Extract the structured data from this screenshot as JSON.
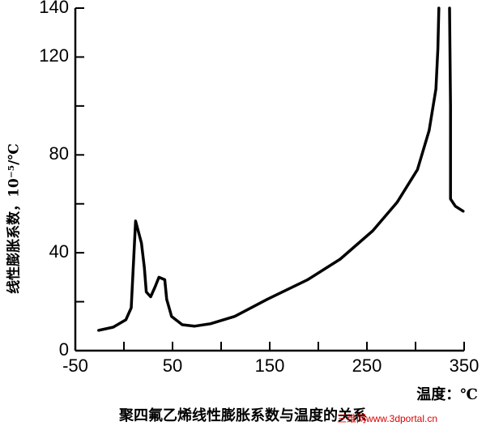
{
  "chart_data": {
    "type": "line",
    "title": "聚四氟乙烯线性膨胀系数与温度的关系",
    "xlabel": "温度：℃",
    "ylabel": "线性膨胀系数，10⁻⁵/℃",
    "watermark": "三维网www.3dportal.cn",
    "x": [
      -26,
      -11,
      2,
      7.5,
      12,
      18,
      21,
      23,
      27.5,
      32,
      36,
      42,
      44,
      49,
      60,
      72.5,
      89,
      114,
      147.5,
      189,
      222.5,
      256,
      281,
      302,
      314,
      321,
      323,
      324,
      null,
      335,
      336,
      336,
      341,
      349
    ],
    "series": [
      {
        "color": "#000000",
        "values": [
          8.3,
          9.6,
          12.6,
          17.5,
          53,
          44,
          34,
          24,
          22,
          26,
          30,
          29,
          21,
          14,
          10.6,
          10,
          11,
          14,
          21,
          29,
          37.4,
          49,
          60.6,
          74,
          90,
          107,
          123.5,
          140,
          null,
          140,
          100,
          62,
          59,
          57
        ]
      }
    ],
    "xlim": [
      -50,
      350
    ],
    "xticks": [
      -50,
      50,
      150,
      250,
      350
    ],
    "minor_xticks": [
      0,
      100,
      200,
      300
    ],
    "ylim": [
      0,
      140
    ],
    "yticks": [
      0,
      40,
      80,
      120,
      140
    ],
    "minor_yticks": [
      20,
      60,
      100
    ]
  }
}
